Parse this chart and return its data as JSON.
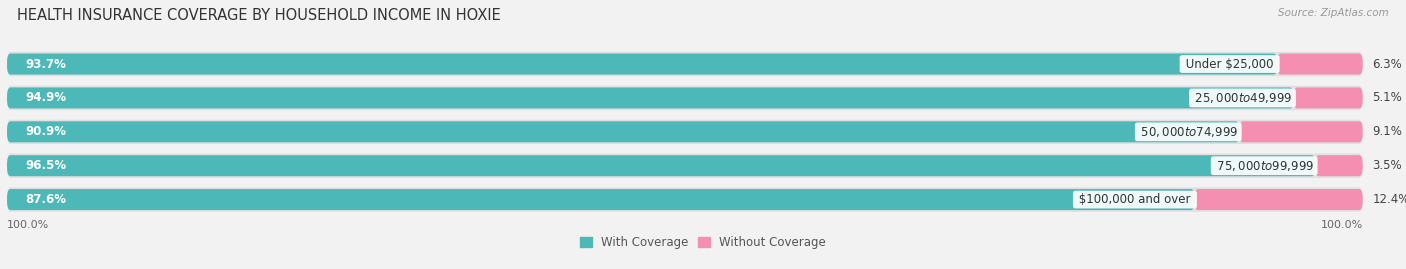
{
  "title": "HEALTH INSURANCE COVERAGE BY HOUSEHOLD INCOME IN HOXIE",
  "source": "Source: ZipAtlas.com",
  "categories": [
    "Under $25,000",
    "$25,000 to $49,999",
    "$50,000 to $74,999",
    "$75,000 to $99,999",
    "$100,000 and over"
  ],
  "with_coverage": [
    93.7,
    94.9,
    90.9,
    96.5,
    87.6
  ],
  "without_coverage": [
    6.3,
    5.1,
    9.1,
    3.5,
    12.4
  ],
  "color_with": "#4db8b8",
  "color_without": "#f48fb1",
  "bg_color": "#f2f2f2",
  "bar_bg_color": "#e0e0e0",
  "title_fontsize": 10.5,
  "label_fontsize": 8.5,
  "tick_fontsize": 8,
  "legend_fontsize": 8.5,
  "bar_height": 0.62,
  "xlim_left": 0,
  "xlim_right": 115
}
